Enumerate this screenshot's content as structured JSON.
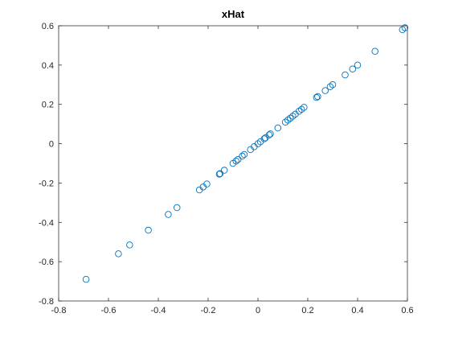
{
  "chart_data": {
    "type": "scatter",
    "title": "xHat",
    "xlabel": "",
    "ylabel": "",
    "xlim": [
      -0.8,
      0.6
    ],
    "ylim": [
      -0.8,
      0.6
    ],
    "xticks": [
      -0.8,
      -0.6,
      -0.4,
      -0.2,
      0,
      0.2,
      0.4,
      0.6
    ],
    "yticks": [
      -0.8,
      -0.6,
      -0.4,
      -0.2,
      0,
      0.2,
      0.4,
      0.6
    ],
    "xtick_labels": [
      "-0.8",
      "-0.6",
      "-0.4",
      "-0.2",
      "0",
      "0.2",
      "0.4",
      "0.6"
    ],
    "ytick_labels": [
      "-0.8",
      "-0.6",
      "-0.4",
      "-0.2",
      "0",
      "0.2",
      "0.4",
      "0.6"
    ],
    "grid": false,
    "marker": "open-circle",
    "marker_color": "#0072BD",
    "series": [
      {
        "x": [
          -0.69,
          -0.56,
          -0.515,
          -0.44,
          -0.36,
          -0.325,
          -0.235,
          -0.22,
          -0.205,
          -0.155,
          -0.152,
          -0.135,
          -0.1,
          -0.088,
          -0.08,
          -0.063,
          -0.055,
          -0.03,
          -0.015,
          0.0,
          0.01,
          0.025,
          0.03,
          0.045,
          0.05,
          0.08,
          0.11,
          0.12,
          0.13,
          0.14,
          0.15,
          0.165,
          0.175,
          0.185,
          0.235,
          0.24,
          0.27,
          0.29,
          0.3,
          0.35,
          0.38,
          0.4,
          0.47,
          0.58,
          0.59
        ],
        "y": [
          -0.69,
          -0.56,
          -0.515,
          -0.44,
          -0.36,
          -0.325,
          -0.235,
          -0.22,
          -0.205,
          -0.155,
          -0.152,
          -0.135,
          -0.1,
          -0.088,
          -0.08,
          -0.063,
          -0.055,
          -0.03,
          -0.015,
          0.0,
          0.01,
          0.025,
          0.03,
          0.045,
          0.05,
          0.08,
          0.11,
          0.12,
          0.13,
          0.14,
          0.15,
          0.165,
          0.175,
          0.185,
          0.235,
          0.24,
          0.27,
          0.29,
          0.3,
          0.35,
          0.38,
          0.4,
          0.47,
          0.58,
          0.59
        ]
      }
    ]
  }
}
